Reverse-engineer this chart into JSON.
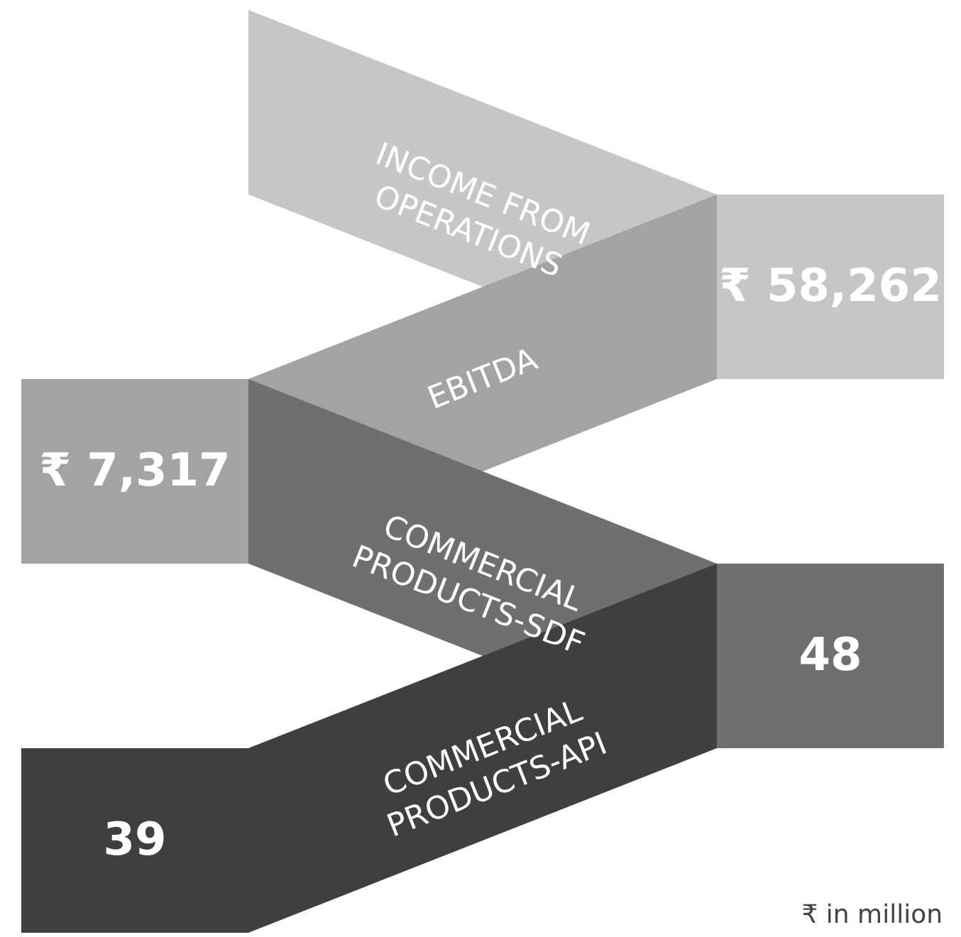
{
  "chart_data": {
    "type": "other",
    "categories": [
      "INCOME FROM\nOPERATIONS",
      "EBITDA",
      "COMMERCIAL\nPRODUCTS-SDF",
      "COMMERCIAL\nPRODUCTS-API"
    ],
    "values": [
      58262,
      7317,
      48,
      39
    ],
    "value_labels": [
      "₹ 58,262",
      "₹ 7,317",
      "48",
      "39"
    ],
    "colors": [
      "#c6c6c6",
      "#a3a3a3",
      "#6f6f6f",
      "#3f3f3f"
    ],
    "annotations": [
      "₹ in million"
    ]
  }
}
